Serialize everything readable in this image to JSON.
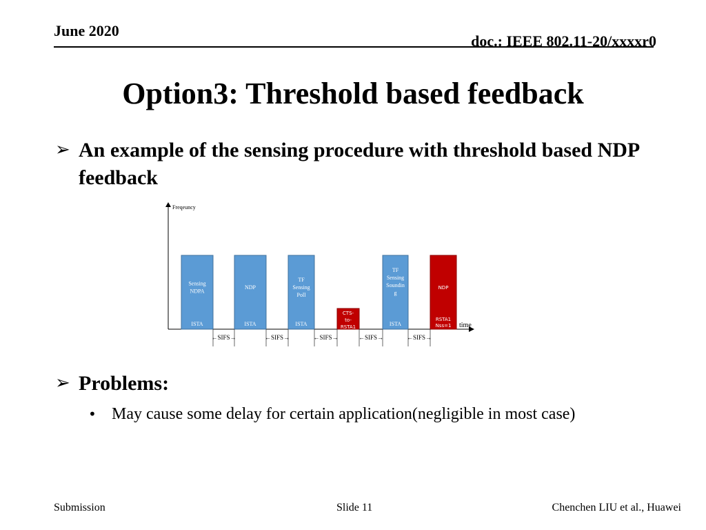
{
  "header": {
    "date": "June 2020",
    "doc": "doc.: IEEE 802.11-20/xxxxr0"
  },
  "title": "Option3: Threshold based feedback",
  "bullets": [
    {
      "text": "An example of the sensing procedure with threshold based NDP feedback"
    },
    {
      "text": "Problems:",
      "sub": [
        "May cause some delay for certain application(negligible in most case)"
      ]
    }
  ],
  "diagram": {
    "y_axis_label": "Freqeuncy",
    "x_axis_label": "time",
    "colors": {
      "blue": "#5b9bd5",
      "blue_border": "#41719c",
      "red": "#c00000",
      "red_border": "#8b0000"
    },
    "frames": [
      {
        "label": [
          "Sensing",
          "NDPA"
        ],
        "sender": "ISTA",
        "color": "blue"
      },
      {
        "label": [
          "NDP"
        ],
        "sender": "ISTA",
        "color": "blue"
      },
      {
        "label": [
          "TF",
          "Sensing",
          "Poll"
        ],
        "sender": "ISTA",
        "color": "blue"
      },
      {
        "label": [
          "CTS-",
          "to-",
          "RSTA1"
        ],
        "sender": "",
        "color": "red"
      },
      {
        "label": [
          "TF",
          "Sensing",
          "Soundin",
          "g"
        ],
        "sender": "ISTA",
        "color": "blue"
      },
      {
        "label": [
          "NDP"
        ],
        "sender": "RSTA1\nNss=1",
        "color": "red"
      }
    ],
    "gap_label": "SIFS"
  },
  "footer": {
    "left": "Submission",
    "center": "Slide 11",
    "right": "Chenchen LIU et al., Huawei"
  }
}
